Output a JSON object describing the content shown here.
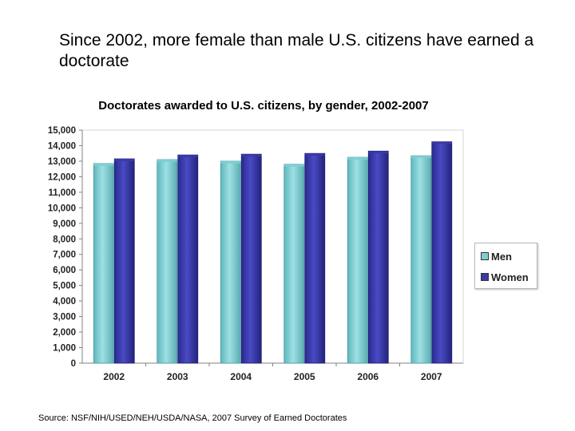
{
  "slide_title": "Since 2002, more female than male U.S. citizens have earned a doctorate",
  "source": "Source: NSF/NIH/USED/NEH/USDA/NASA, 2007 Survey of Earned Doctorates",
  "colors": {
    "men": "#7ecfd3",
    "women": "#3a3aa8"
  },
  "chart_data": {
    "type": "bar",
    "title": "Doctorates awarded to U.S. citizens, by gender, 2002-2007",
    "xlabel": "",
    "ylabel": "",
    "categories": [
      "2002",
      "2003",
      "2004",
      "2005",
      "2006",
      "2007"
    ],
    "series": [
      {
        "name": "Men",
        "values": [
          12850,
          13100,
          13000,
          12800,
          13250,
          13350
        ]
      },
      {
        "name": "Women",
        "values": [
          13150,
          13400,
          13450,
          13500,
          13650,
          14250
        ]
      }
    ],
    "ylim": [
      0,
      15000
    ],
    "yticks": [
      "0",
      "1,000",
      "2,000",
      "3,000",
      "4,000",
      "5,000",
      "6,000",
      "7,000",
      "8,000",
      "9,000",
      "10,000",
      "11,000",
      "12,000",
      "13,000",
      "14,000",
      "15,000"
    ],
    "grid": false,
    "legend_position": "right"
  }
}
